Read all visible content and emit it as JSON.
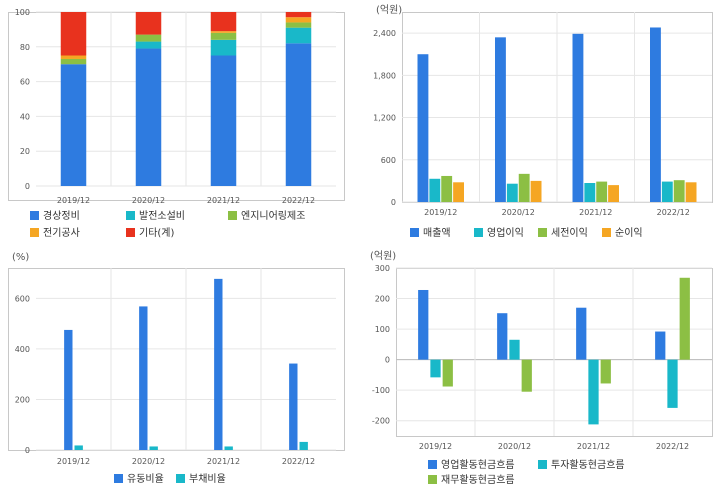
{
  "colors": {
    "blue": "#2e7be0",
    "teal": "#19b8c9",
    "green": "#8cbf44",
    "orange": "#f5a623",
    "red": "#e8321e",
    "grid": "#e6e6e6",
    "frame": "#c8c8c8",
    "text": "#555555"
  },
  "chart_data": [
    {
      "type": "bar",
      "stacked": true,
      "unit_label": "",
      "categories": [
        "2019/12",
        "2020/12",
        "2021/12",
        "2022/12"
      ],
      "ylim": [
        0,
        100
      ],
      "yticks": [
        0,
        20,
        40,
        60,
        80,
        100
      ],
      "series": [
        {
          "name": "경상정비",
          "color": "#2e7be0",
          "values": [
            70,
            79,
            75,
            82
          ]
        },
        {
          "name": "발전소설비",
          "color": "#19b8c9",
          "values": [
            0,
            4,
            9,
            9
          ]
        },
        {
          "name": "엔지니어링제조",
          "color": "#8cbf44",
          "values": [
            3,
            4,
            4,
            3
          ]
        },
        {
          "name": "전기공사",
          "color": "#f5a623",
          "values": [
            2,
            0,
            1,
            3
          ]
        },
        {
          "name": "기타(계)",
          "color": "#e8321e",
          "values": [
            25,
            13,
            11,
            3
          ]
        }
      ]
    },
    {
      "type": "bar",
      "stacked": false,
      "unit_label": "(억원)",
      "categories": [
        "2019/12",
        "2020/12",
        "2021/12",
        "2022/12"
      ],
      "ylim": [
        0,
        2700
      ],
      "yticks": [
        0,
        600,
        1200,
        1800,
        2400
      ],
      "ytick_labels": [
        "0",
        "600",
        "1,200",
        "1,800",
        "2,400"
      ],
      "series": [
        {
          "name": "매출액",
          "color": "#2e7be0",
          "values": [
            2100,
            2340,
            2390,
            2480
          ]
        },
        {
          "name": "영업이익",
          "color": "#19b8c9",
          "values": [
            330,
            260,
            270,
            290
          ]
        },
        {
          "name": "세전이익",
          "color": "#8cbf44",
          "values": [
            370,
            400,
            290,
            310
          ]
        },
        {
          "name": "순이익",
          "color": "#f5a623",
          "values": [
            280,
            300,
            240,
            280
          ]
        }
      ]
    },
    {
      "type": "bar",
      "stacked": false,
      "unit_label": "(%)",
      "categories": [
        "2019/12",
        "2020/12",
        "2021/12",
        "2022/12"
      ],
      "ylim": [
        0,
        720
      ],
      "yticks": [
        0,
        200,
        400,
        600
      ],
      "series": [
        {
          "name": "유동비율",
          "color": "#2e7be0",
          "values": [
            475,
            568,
            677,
            342
          ]
        },
        {
          "name": "부채비율",
          "color": "#19b8c9",
          "values": [
            18,
            14,
            14,
            32
          ]
        }
      ]
    },
    {
      "type": "bar",
      "stacked": false,
      "unit_label": "(억원)",
      "categories": [
        "2019/12",
        "2020/12",
        "2021/12",
        "2022/12"
      ],
      "ylim": [
        -250,
        300
      ],
      "yticks": [
        -200,
        -100,
        0,
        100,
        200,
        300
      ],
      "series": [
        {
          "name": "영업활동현금흐름",
          "color": "#2e7be0",
          "values": [
            228,
            152,
            170,
            92
          ]
        },
        {
          "name": "투자활동현금흐름",
          "color": "#19b8c9",
          "values": [
            -58,
            65,
            -212,
            -158
          ]
        },
        {
          "name": "재무활동현금흐름",
          "color": "#8cbf44",
          "values": [
            -88,
            -105,
            -78,
            268
          ]
        }
      ]
    }
  ]
}
